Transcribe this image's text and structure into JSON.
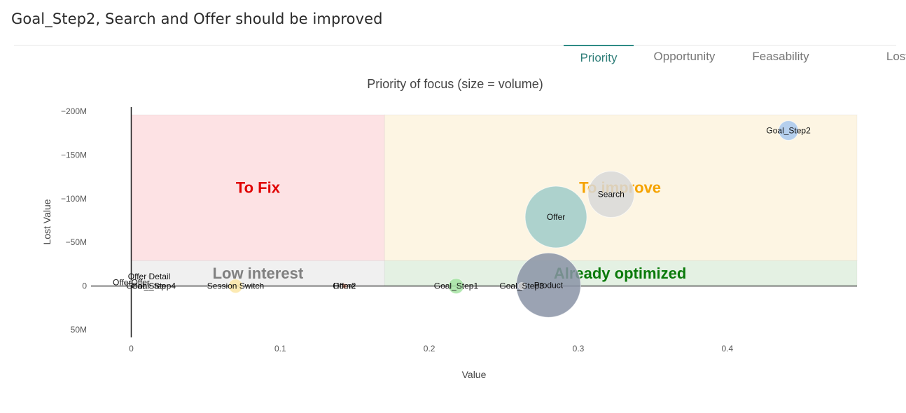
{
  "page": {
    "title": "Goal_Step2, Search and Offer should be improved"
  },
  "tabs": [
    {
      "label": "Priority",
      "active": true
    },
    {
      "label": "Opportunity",
      "active": false
    },
    {
      "label": "Feasability",
      "active": false
    },
    {
      "label": "Lost",
      "active": false
    }
  ],
  "chart_data": {
    "type": "scatter",
    "title": "Priority of focus (size = volume)",
    "xlabel": "Value",
    "ylabel": "Lost Value",
    "xlim": [
      -0.027,
      0.487
    ],
    "ylim": [
      50000000,
      -200000000
    ],
    "y_axis_reversed": true,
    "x_ticks": [
      {
        "v": 0,
        "label": "0"
      },
      {
        "v": 0.1,
        "label": "0.1"
      },
      {
        "v": 0.2,
        "label": "0.2"
      },
      {
        "v": 0.3,
        "label": "0.3"
      },
      {
        "v": 0.4,
        "label": "0.4"
      }
    ],
    "y_ticks": [
      {
        "v": -200000000,
        "label": "−200M"
      },
      {
        "v": -150000000,
        "label": "−150M"
      },
      {
        "v": -100000000,
        "label": "−100M"
      },
      {
        "v": -50000000,
        "label": "−50M"
      },
      {
        "v": 0,
        "label": "0"
      },
      {
        "v": 50000000,
        "label": "50M"
      }
    ],
    "zones": [
      {
        "label": "To Fix",
        "x0": 0,
        "x1": 0.17,
        "y0": -196000000,
        "y1": -29000000,
        "fill": "#fde2e4",
        "text_color": "#e00000",
        "label_x": 0.085,
        "label_y": -113000000
      },
      {
        "label": "To improve",
        "x0": 0.17,
        "x1": 0.487,
        "y0": -196000000,
        "y1": -29000000,
        "fill": "#fdf5e3",
        "text_color": "#f5a300",
        "label_x": 0.328,
        "label_y": -113000000
      },
      {
        "label": "Low interest",
        "x0": 0,
        "x1": 0.17,
        "y0": -29000000,
        "y1": 0,
        "fill": "#f0f0f0",
        "text_color": "#808080",
        "label_x": 0.085,
        "label_y": -15000000
      },
      {
        "label": "Already optimized",
        "x0": 0.17,
        "x1": 0.487,
        "y0": -29000000,
        "y1": 0,
        "fill": "#e4f1e3",
        "text_color": "#0a7a0a",
        "label_x": 0.328,
        "label_y": -15000000
      }
    ],
    "points": [
      {
        "name": "Goal_Step2",
        "x": 0.441,
        "y": -178000000,
        "size": 14,
        "color": "#a8c8ee"
      },
      {
        "name": "Search",
        "x": 0.322,
        "y": -105000000,
        "size": 33,
        "color": "#d8d8d8"
      },
      {
        "name": "Offer",
        "x": 0.285,
        "y": -79000000,
        "size": 44,
        "color": "#9fcbc9"
      },
      {
        "name": "Product",
        "x": 0.28,
        "y": -1000000,
        "size": 46,
        "color": "#8a93a6"
      },
      {
        "name": "Goal_Step3",
        "x": 0.262,
        "y": 0,
        "size": 5,
        "color": "#cccccc"
      },
      {
        "name": "Goal_Step1",
        "x": 0.218,
        "y": 0,
        "size": 11,
        "color": "#a5e3a2"
      },
      {
        "name": "Home",
        "x": 0.143,
        "y": 0,
        "size": 4,
        "color": "#f3a58a"
      },
      {
        "name": "Offer2",
        "x": 0.143,
        "y": 0,
        "size": 3,
        "color": "#f3a58a"
      },
      {
        "name": "Session Switch",
        "x": 0.07,
        "y": 0,
        "size": 10,
        "color": "#fbe6a6"
      },
      {
        "name": "Offer Detail",
        "x": 0.012,
        "y": -11000000,
        "size": 3,
        "color": "#dddddd"
      },
      {
        "name": "OfferOffer",
        "x": 0,
        "y": -4000000,
        "size": 3,
        "color": "#dddddd"
      },
      {
        "name": "Goal_Step4",
        "x": 0.015,
        "y": 0,
        "size": 3,
        "color": "#dddddd"
      },
      {
        "name": "Goal_Step",
        "x": 0.01,
        "y": 0,
        "size": 3,
        "color": "#dddddd"
      }
    ]
  }
}
